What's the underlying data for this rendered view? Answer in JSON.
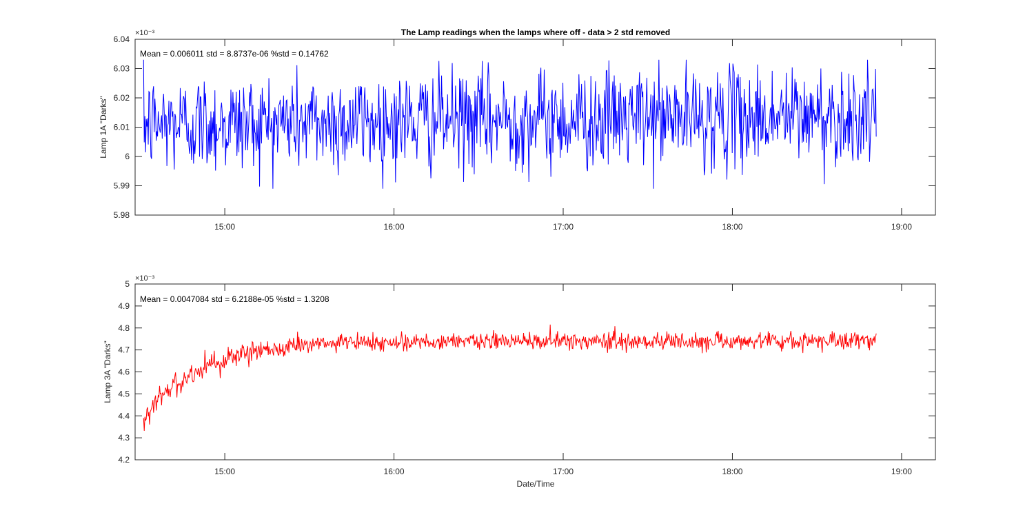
{
  "figure": {
    "title": "The Lamp readings when the lamps where off - data > 2 std removed",
    "xlabel": "Date/Time"
  },
  "chart_data": [
    {
      "type": "line",
      "title": "The Lamp readings when the lamps where off - data > 2 std removed",
      "ylabel": "Lamp 1A \"Darks\"",
      "xlabel": "",
      "annotation": "Mean = 0.006011  std = 8.8737e-06  %std = 0.14762",
      "exponent_label": "×10⁻³",
      "x_ticks": [
        "15:00",
        "16:00",
        "17:00",
        "18:00",
        "19:00"
      ],
      "x_tick_hours": [
        15,
        16,
        17,
        18,
        19
      ],
      "xlim_hours": [
        14.47,
        19.2
      ],
      "y_ticks": [
        "5.98",
        "5.99",
        "6",
        "6.01",
        "6.02",
        "6.03",
        "6.04"
      ],
      "y_tick_values": [
        5.98,
        5.99,
        6.0,
        6.01,
        6.02,
        6.03,
        6.04
      ],
      "ylim": [
        5.98,
        6.04
      ],
      "y_units": "×1e-3",
      "grid": false,
      "series": [
        {
          "name": "Lamp 1A Darks",
          "color": "#0000ff",
          "x_start_hour": 14.52,
          "x_end_hour": 18.85,
          "approx_mean": 6.011,
          "approx_std": 0.0089,
          "min_value": 5.989,
          "max_value": 6.033,
          "trend": "flat noise around 6.01, slightly rising to ~6.015 near the end"
        }
      ]
    },
    {
      "type": "line",
      "title": "",
      "ylabel": "Lamp 3A \"Darks\"",
      "xlabel": "Date/Time",
      "annotation": "Mean = 0.0047084  std = 6.2188e-05  %std = 1.3208",
      "exponent_label": "×10⁻³",
      "x_ticks": [
        "15:00",
        "16:00",
        "17:00",
        "18:00",
        "19:00"
      ],
      "x_tick_hours": [
        15,
        16,
        17,
        18,
        19
      ],
      "xlim_hours": [
        14.47,
        19.2
      ],
      "y_ticks": [
        "4.2",
        "4.3",
        "4.4",
        "4.5",
        "4.6",
        "4.7",
        "4.8",
        "4.9",
        "5"
      ],
      "y_tick_values": [
        4.2,
        4.3,
        4.4,
        4.5,
        4.6,
        4.7,
        4.8,
        4.9,
        5.0
      ],
      "ylim": [
        4.2,
        5.0
      ],
      "y_units": "×1e-3",
      "grid": false,
      "series": [
        {
          "name": "Lamp 3A Darks",
          "color": "#ff0000",
          "x_start_hour": 14.52,
          "x_end_hour": 18.85,
          "start_value": 4.39,
          "plateau_value": 4.74,
          "peak_value": 4.82,
          "approx_noise": 0.02,
          "trend": "rises from ~4.39 at start to plateau ~4.74 by about 15:40, then flat with noise"
        }
      ]
    }
  ]
}
